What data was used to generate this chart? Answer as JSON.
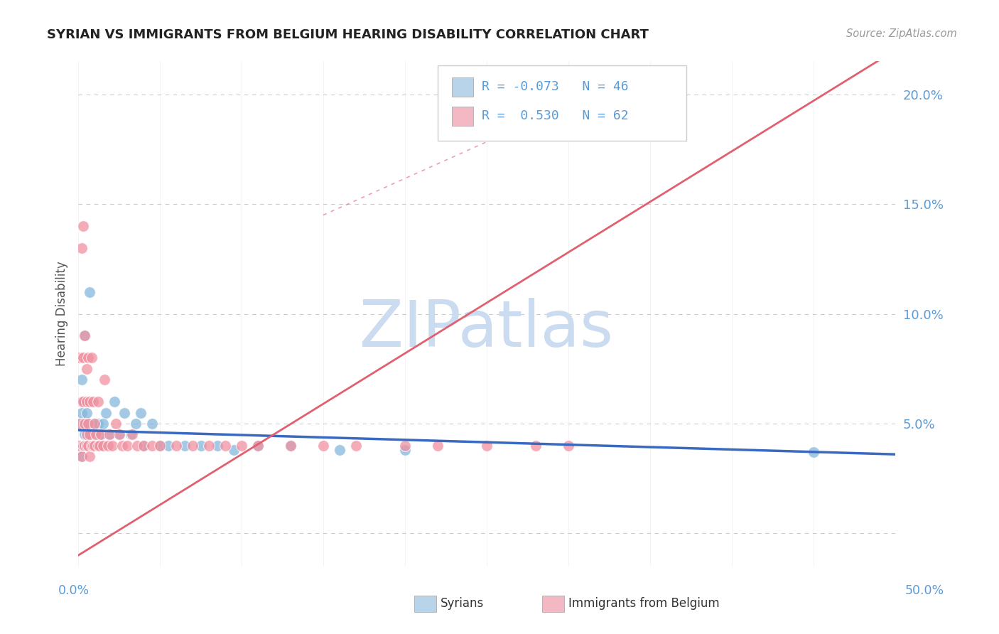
{
  "title": "SYRIAN VS IMMIGRANTS FROM BELGIUM HEARING DISABILITY CORRELATION CHART",
  "source": "Source: ZipAtlas.com",
  "ylabel": "Hearing Disability",
  "xlim": [
    0.0,
    0.5
  ],
  "ylim": [
    -0.015,
    0.215
  ],
  "yticks": [
    0.0,
    0.05,
    0.1,
    0.15,
    0.2
  ],
  "ytick_labels": [
    "",
    "5.0%",
    "10.0%",
    "15.0%",
    "20.0%"
  ],
  "xtick_left": "0.0%",
  "xtick_right": "50.0%",
  "watermark": "ZIPatlas",
  "watermark_color": "#ccdcf0",
  "background_color": "#ffffff",
  "grid_color": "#cccccc",
  "title_color": "#222222",
  "axis_label_color": "#5b9bd5",
  "syrians_scatter_color": "#85b8dd",
  "belgians_scatter_color": "#f090a0",
  "syrians_line_color": "#3a6abf",
  "belgians_line_color": "#e06070",
  "legend_syrians_color": "#b8d4ea",
  "legend_belgians_color": "#f4b8c4",
  "R_syrians": -0.073,
  "N_syrians": 46,
  "R_belgians": 0.53,
  "N_belgians": 62,
  "syrians_label": "Syrians",
  "belgians_label": "Immigrants from Belgium",
  "syrians_x": [
    0.001,
    0.001,
    0.002,
    0.002,
    0.002,
    0.003,
    0.003,
    0.003,
    0.004,
    0.004,
    0.004,
    0.005,
    0.005,
    0.006,
    0.006,
    0.007,
    0.007,
    0.008,
    0.009,
    0.009,
    0.01,
    0.011,
    0.012,
    0.013,
    0.015,
    0.017,
    0.019,
    0.022,
    0.025,
    0.028,
    0.032,
    0.035,
    0.038,
    0.04,
    0.045,
    0.05,
    0.055,
    0.065,
    0.075,
    0.085,
    0.095,
    0.11,
    0.13,
    0.16,
    0.2,
    0.45
  ],
  "syrians_y": [
    0.04,
    0.05,
    0.035,
    0.055,
    0.07,
    0.04,
    0.05,
    0.06,
    0.045,
    0.06,
    0.09,
    0.04,
    0.055,
    0.04,
    0.05,
    0.04,
    0.11,
    0.045,
    0.04,
    0.05,
    0.045,
    0.04,
    0.05,
    0.045,
    0.05,
    0.055,
    0.045,
    0.06,
    0.045,
    0.055,
    0.045,
    0.05,
    0.055,
    0.04,
    0.05,
    0.04,
    0.04,
    0.04,
    0.04,
    0.04,
    0.038,
    0.04,
    0.04,
    0.038,
    0.038,
    0.037
  ],
  "belgians_x": [
    0.001,
    0.001,
    0.001,
    0.002,
    0.002,
    0.002,
    0.003,
    0.003,
    0.003,
    0.003,
    0.004,
    0.004,
    0.004,
    0.005,
    0.005,
    0.005,
    0.005,
    0.006,
    0.006,
    0.006,
    0.007,
    0.007,
    0.007,
    0.008,
    0.008,
    0.009,
    0.009,
    0.01,
    0.01,
    0.011,
    0.012,
    0.012,
    0.013,
    0.014,
    0.015,
    0.016,
    0.018,
    0.019,
    0.021,
    0.023,
    0.025,
    0.027,
    0.03,
    0.033,
    0.036,
    0.04,
    0.045,
    0.05,
    0.06,
    0.07,
    0.08,
    0.09,
    0.1,
    0.11,
    0.13,
    0.15,
    0.17,
    0.2,
    0.22,
    0.25,
    0.28,
    0.3
  ],
  "belgians_y": [
    0.04,
    0.05,
    0.08,
    0.035,
    0.06,
    0.13,
    0.04,
    0.06,
    0.08,
    0.14,
    0.04,
    0.05,
    0.09,
    0.04,
    0.06,
    0.045,
    0.075,
    0.04,
    0.05,
    0.08,
    0.045,
    0.06,
    0.035,
    0.04,
    0.08,
    0.04,
    0.06,
    0.04,
    0.05,
    0.045,
    0.04,
    0.06,
    0.04,
    0.045,
    0.04,
    0.07,
    0.04,
    0.045,
    0.04,
    0.05,
    0.045,
    0.04,
    0.04,
    0.045,
    0.04,
    0.04,
    0.04,
    0.04,
    0.04,
    0.04,
    0.04,
    0.04,
    0.04,
    0.04,
    0.04,
    0.04,
    0.04,
    0.04,
    0.04,
    0.04,
    0.04,
    0.04
  ],
  "syrians_trend": [
    0.0,
    0.5,
    0.047,
    0.036
  ],
  "belgians_trend": [
    0.0,
    0.5,
    -0.01,
    0.22
  ],
  "belgians_dotted_trend": [
    0.0,
    0.5,
    -0.01,
    0.22
  ]
}
